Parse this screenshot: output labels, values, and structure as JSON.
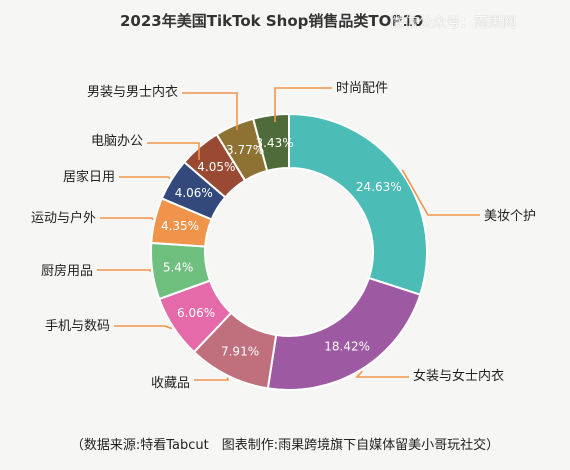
{
  "title": "2023年美国TikTok Shop销售品类TOP10",
  "watermark": "微信公众号：雨果网",
  "footer": "（数据来源:特看Tabcut　图表制作:雨果跨境旗下自媒体留美小哥玩社交）",
  "chart_data": {
    "type": "pie",
    "donut": true,
    "title": "2023年美国TikTok Shop销售品类TOP10",
    "slices": [
      {
        "label": "美妆个护",
        "value": 24.63,
        "display": "24.63%",
        "color": "#4bbcb6"
      },
      {
        "label": "女装与女士内衣",
        "value": 18.42,
        "display": "18.42%",
        "color": "#9e59a3"
      },
      {
        "label": "收藏品",
        "value": 7.91,
        "display": "7.91%",
        "color": "#c0707c"
      },
      {
        "label": "手机与数码",
        "value": 6.06,
        "display": "6.06%",
        "color": "#e46aa9"
      },
      {
        "label": "厨房用品",
        "value": 5.4,
        "display": "5.4%",
        "color": "#6fbf7f"
      },
      {
        "label": "运动与户外",
        "value": 4.35,
        "display": "4.35%",
        "color": "#f0944c"
      },
      {
        "label": "居家日用",
        "value": 4.06,
        "display": "4.06%",
        "color": "#33497c"
      },
      {
        "label": "电脑办公",
        "value": 4.05,
        "display": "4.05%",
        "color": "#9a4a33"
      },
      {
        "label": "男装与男士内衣",
        "value": 3.77,
        "display": "3.77%",
        "color": "#8e7233"
      },
      {
        "label": "时尚配件",
        "value": 3.43,
        "display": "3.43%",
        "color": "#4e6b39"
      }
    ],
    "leader_color": "#f0944c"
  }
}
